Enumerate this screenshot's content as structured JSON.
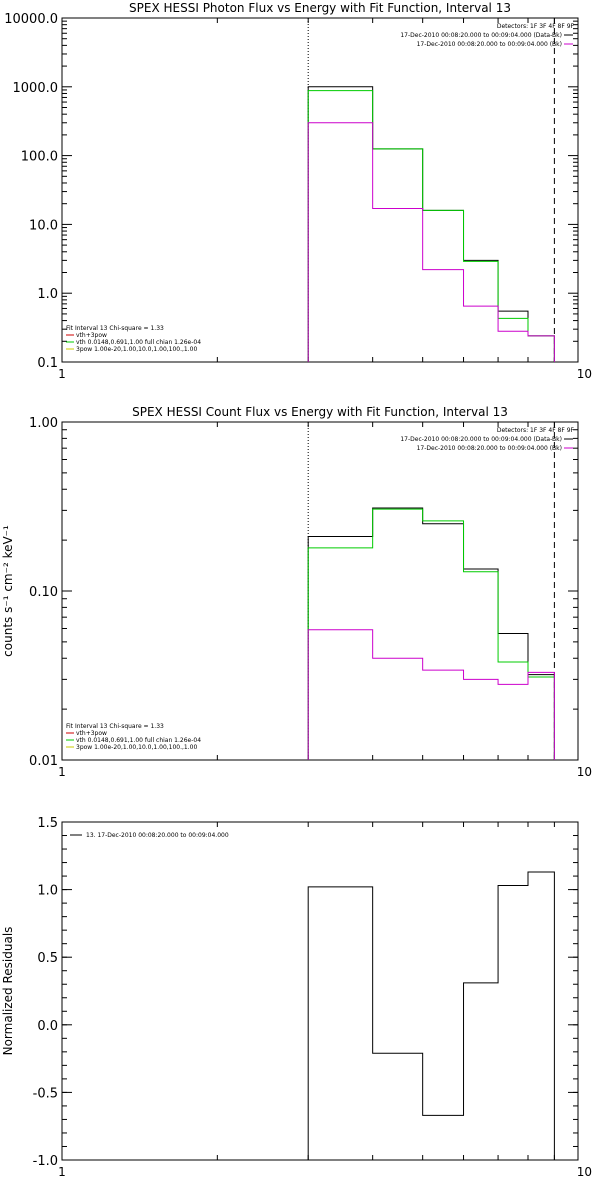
{
  "chart_data": [
    {
      "type": "line",
      "title": "SPEX HESSI Photon Flux vs Energy with Fit Function, Interval 13",
      "xlabel": "",
      "ylabel": "",
      "xscale": "log",
      "yscale": "log",
      "xlim": [
        1,
        10
      ],
      "ylim": [
        0.1,
        10000.0
      ],
      "x_ticks": [
        "1",
        "10"
      ],
      "y_ticks": [
        "0.1",
        "1.0",
        "10.0",
        "100.0",
        "1000.0",
        "10000.0"
      ],
      "y_tick_values": [
        0.1,
        1,
        10,
        100,
        1000,
        10000
      ],
      "bin_edges": [
        3,
        4,
        5,
        6,
        7,
        8,
        9
      ],
      "dotted_line_x": 3,
      "dashed_line_x": 9,
      "detectors_label": "Detectors: 1F 3F 4F 8F 9F",
      "time_legend": [
        {
          "label": "17-Dec-2010 00:08:20.000 to 00:09:04.000 (Data-Bk)",
          "color": "#000000"
        },
        {
          "label": "17-Dec-2010 00:08:20.000 to 00:09:04.000 (Bk)",
          "color": "#cc00cc"
        }
      ],
      "fit_legend": [
        {
          "label": "Fit Interval 13    Chi-square = 1.33",
          "color": ""
        },
        {
          "label": "vth+3pow",
          "color": "#cc0000"
        },
        {
          "label": "vth 0.0148,0.691,1.00  full chian 1.26e-04",
          "color": "#00cc00"
        },
        {
          "label": "3pow 1.00e-20,1.00,10.0,1.00,100.,1.00",
          "color": "#cccc00"
        }
      ],
      "series": [
        {
          "name": "17-Dec-2010 00:08:20.000 to 00:09:04.000 (Data-Bk)",
          "color": "#000000",
          "values": [
            1000,
            125,
            16,
            3.0,
            0.55,
            0.24
          ]
        },
        {
          "name": "vth 0.0148,0.691,1.00  full chian 1.26e-04",
          "color": "#00cc00",
          "values": [
            880,
            125,
            16,
            2.9,
            0.43,
            0.24
          ]
        },
        {
          "name": "17-Dec-2010 00:08:20.000 to 00:09:04.000 (Bk)",
          "color": "#cc00cc",
          "values": [
            300,
            17,
            2.2,
            0.65,
            0.28,
            0.24
          ]
        }
      ]
    },
    {
      "type": "line",
      "title": "SPEX HESSI Count Flux vs Energy with Fit Function, Interval 13",
      "xlabel": "",
      "ylabel": "counts s⁻¹ cm⁻² keV⁻¹",
      "xscale": "log",
      "yscale": "log",
      "xlim": [
        1,
        10
      ],
      "ylim": [
        0.01,
        1.0
      ],
      "x_ticks": [
        "1",
        "10"
      ],
      "y_ticks": [
        "0.01",
        "0.10",
        "1.00"
      ],
      "y_tick_values": [
        0.01,
        0.1,
        1.0
      ],
      "bin_edges": [
        3,
        4,
        5,
        6,
        7,
        8,
        9
      ],
      "dotted_line_x": 3,
      "dashed_line_x": 9,
      "detectors_label": "Detectors: 1F 3F 4F 8F 9F",
      "time_legend": [
        {
          "label": "17-Dec-2010 00:08:20.000 to 00:09:04.000 (Data-Bk)",
          "color": "#000000"
        },
        {
          "label": "17-Dec-2010 00:08:20.000 to 00:09:04.000 (Bk)",
          "color": "#cc00cc"
        }
      ],
      "fit_legend": [
        {
          "label": "Fit Interval 13    Chi-square = 1.33",
          "color": ""
        },
        {
          "label": "vth+3pow",
          "color": "#cc0000"
        },
        {
          "label": "vth 0.0148,0.691,1.00  full chian 1.26e-04",
          "color": "#00cc00"
        },
        {
          "label": "3pow 1.00e-20,1.00,10.0,1.00,100.,1.00",
          "color": "#cccc00"
        }
      ],
      "series": [
        {
          "name": "17-Dec-2010 00:08:20.000 to 00:09:04.000 (Data-Bk)",
          "color": "#000000",
          "values": [
            0.21,
            0.31,
            0.25,
            0.135,
            0.056,
            0.032
          ]
        },
        {
          "name": "vth 0.0148,0.691,1.00  full chian 1.26e-04",
          "color": "#00cc00",
          "values": [
            0.18,
            0.305,
            0.26,
            0.13,
            0.038,
            0.031
          ]
        },
        {
          "name": "17-Dec-2010 00:08:20.000 to 00:09:04.000 (Bk)",
          "color": "#cc00cc",
          "values": [
            0.059,
            0.04,
            0.034,
            0.03,
            0.028,
            0.033
          ]
        }
      ]
    },
    {
      "type": "line",
      "title": "",
      "xlabel": "",
      "ylabel": "Normalized Residuals",
      "xscale": "log",
      "yscale": "linear",
      "xlim": [
        1,
        10
      ],
      "ylim": [
        -1.0,
        1.5
      ],
      "x_ticks": [
        "1",
        "10"
      ],
      "y_ticks": [
        "-1.0",
        "-0.5",
        "0.0",
        "0.5",
        "1.0",
        "1.5"
      ],
      "y_tick_values": [
        -1.0,
        -0.5,
        0.0,
        0.5,
        1.0,
        1.5
      ],
      "bin_edges": [
        3,
        4,
        5,
        6,
        7,
        8,
        9
      ],
      "legend": [
        {
          "label": "13. 17-Dec-2010 00:08:20.000 to 00:09:04.000",
          "color": "#000000"
        }
      ],
      "series": [
        {
          "name": "13. 17-Dec-2010 00:08:20.000 to 00:09:04.000",
          "color": "#000000",
          "values": [
            1.02,
            -0.21,
            -0.67,
            0.31,
            1.03,
            1.13
          ]
        }
      ]
    }
  ]
}
